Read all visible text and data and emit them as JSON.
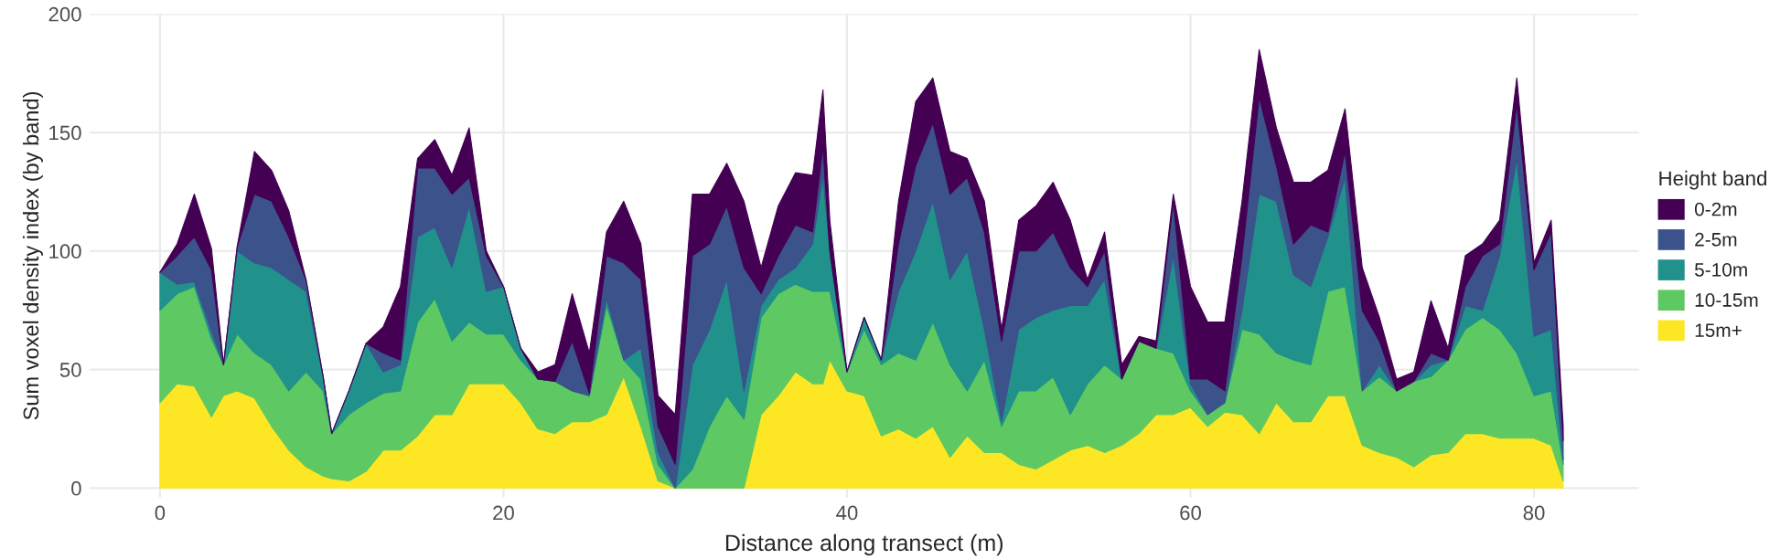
{
  "chart_data": {
    "type": "area",
    "stacked": true,
    "xlabel": "Distance along transect (m)",
    "ylabel": "Sum voxel density index (by band)",
    "legend_title": "Height band",
    "x": [
      0,
      1,
      2,
      3,
      3.7,
      4.5,
      5.5,
      6.5,
      7.5,
      8.5,
      9.5,
      10,
      11,
      12,
      13,
      14,
      15,
      16,
      17,
      18,
      19,
      20,
      21,
      22,
      23,
      24,
      25,
      26,
      27,
      28,
      29,
      30,
      31,
      32,
      33,
      34,
      35,
      36,
      37,
      38,
      38.6,
      39,
      40,
      41,
      42,
      43,
      44,
      45,
      46,
      47,
      48,
      49,
      50,
      51,
      52,
      53,
      54,
      55,
      56,
      57,
      58,
      59,
      60,
      61,
      62,
      63,
      64,
      65,
      66,
      67,
      68,
      69,
      70,
      71,
      72,
      73,
      74,
      75,
      76,
      77,
      78,
      79,
      80,
      81,
      81.7
    ],
    "series": [
      {
        "name": "15m+",
        "color": "#fde725",
        "values": [
          36,
          44,
          43,
          30,
          39,
          41,
          38,
          26,
          16,
          9,
          5,
          4,
          3,
          7,
          16,
          16,
          22,
          31,
          31,
          44,
          44,
          44,
          36,
          25,
          23,
          28,
          28,
          31,
          47,
          26,
          3,
          0,
          0,
          0,
          0,
          0,
          31,
          39,
          49,
          44,
          44,
          54,
          41,
          39,
          22,
          25,
          21,
          26,
          13,
          22,
          15,
          15,
          10,
          8,
          12,
          16,
          18,
          15,
          18,
          23,
          31,
          31,
          34,
          26,
          32,
          31,
          23,
          36,
          28,
          28,
          39,
          39,
          18,
          15,
          13,
          9,
          14,
          15,
          23,
          23,
          21,
          21,
          21,
          18,
          3
        ]
      },
      {
        "name": "10-15m",
        "color": "#5ec962",
        "values": [
          39,
          38,
          42,
          33,
          13,
          24,
          19,
          26,
          25,
          40,
          36,
          19,
          28,
          29,
          24,
          25,
          48,
          49,
          31,
          26,
          21,
          21,
          18,
          21,
          22,
          13,
          11,
          46,
          7,
          20,
          7,
          0,
          8,
          26,
          39,
          29,
          41,
          43,
          37,
          39,
          39,
          29,
          8,
          28,
          30,
          32,
          33,
          44,
          39,
          19,
          39,
          11,
          31,
          33,
          35,
          15,
          26,
          37,
          28,
          39,
          28,
          26,
          7,
          5,
          4,
          36,
          42,
          21,
          26,
          24,
          44,
          46,
          23,
          32,
          28,
          36,
          33,
          39,
          44,
          49,
          46,
          36,
          18,
          23,
          7
        ]
      },
      {
        "name": "5-10m",
        "color": "#21918c",
        "values": [
          16,
          4,
          2,
          3,
          0,
          35,
          38,
          41,
          47,
          34,
          6,
          0,
          10,
          25,
          9,
          11,
          36,
          30,
          31,
          49,
          18,
          20,
          5,
          0,
          0,
          0,
          0,
          3,
          0,
          13,
          5,
          0,
          44,
          41,
          49,
          12,
          5,
          6,
          7,
          20,
          49,
          17,
          0,
          5,
          2,
          26,
          46,
          51,
          36,
          59,
          13,
          2,
          26,
          31,
          28,
          46,
          33,
          36,
          0,
          0,
          0,
          41,
          3,
          0,
          0,
          8,
          59,
          64,
          36,
          33,
          23,
          46,
          0,
          5,
          0,
          0,
          5,
          0,
          10,
          3,
          31,
          82,
          25,
          26,
          2
        ]
      },
      {
        "name": "2-5m",
        "color": "#3b528b",
        "values": [
          0,
          12,
          19,
          26,
          0,
          2,
          29,
          28,
          18,
          5,
          0,
          0,
          0,
          0,
          8,
          2,
          29,
          25,
          31,
          12,
          15,
          0,
          0,
          0,
          0,
          21,
          1,
          18,
          41,
          29,
          11,
          10,
          46,
          36,
          31,
          52,
          5,
          10,
          18,
          5,
          12,
          0,
          0,
          0,
          0,
          20,
          36,
          33,
          36,
          31,
          41,
          34,
          33,
          28,
          33,
          16,
          8,
          12,
          0,
          0,
          0,
          23,
          2,
          15,
          5,
          23,
          41,
          15,
          13,
          26,
          2,
          11,
          34,
          10,
          0,
          0,
          5,
          0,
          8,
          23,
          5,
          23,
          28,
          41,
          8
        ]
      },
      {
        "name": "0-2m",
        "color": "#440154",
        "values": [
          0,
          5,
          18,
          9,
          0,
          0,
          18,
          13,
          11,
          0,
          0,
          0,
          0,
          0,
          11,
          31,
          4,
          12,
          8,
          21,
          2,
          0,
          0,
          3,
          7,
          20,
          17,
          10,
          26,
          15,
          13,
          21,
          26,
          21,
          18,
          28,
          11,
          21,
          22,
          24,
          24,
          13,
          0,
          0,
          0,
          18,
          27,
          19,
          18,
          8,
          13,
          5,
          13,
          19,
          21,
          20,
          3,
          8,
          6,
          2,
          3,
          3,
          39,
          24,
          29,
          23,
          20,
          16,
          26,
          18,
          26,
          18,
          18,
          10,
          5,
          4,
          22,
          5,
          13,
          5,
          10,
          11,
          3,
          5,
          6
        ]
      }
    ],
    "xlim": [
      -4.1,
      86.1
    ],
    "ylim": [
      -4,
      200
    ],
    "xticks": [
      0,
      20,
      40,
      60,
      80
    ],
    "yticks": [
      0,
      50,
      100,
      150,
      200
    ],
    "grid": true,
    "legend": "right"
  }
}
